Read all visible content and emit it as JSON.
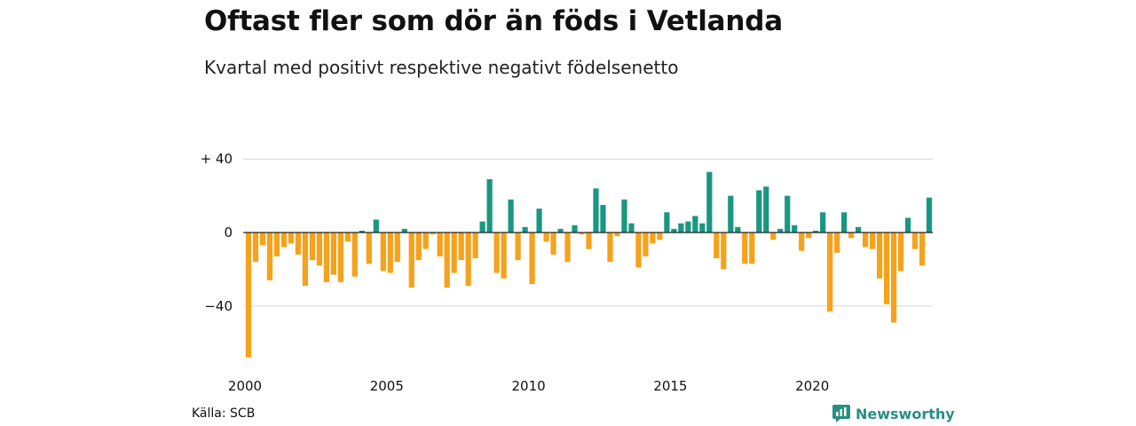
{
  "title": "Oftast fler som dör än föds i Vetlanda",
  "subtitle": "Kvartal med positivt respektive negativt födelsenetto",
  "source": "Källa: SCB",
  "brand": "Newsworthy",
  "colors": {
    "positive": "#1a9782",
    "negative": "#f5a21c",
    "grid": "#d6d6d6",
    "zero": "#222222",
    "brand": "#2a8f82"
  },
  "chart_data": {
    "type": "bar",
    "y_ticks": [
      {
        "value": 40,
        "label": "+ 40"
      },
      {
        "value": 0,
        "label": "0"
      },
      {
        "value": -40,
        "label": "−40"
      }
    ],
    "x_ticks": [
      {
        "index": 0,
        "label": "2000"
      },
      {
        "index": 20,
        "label": "2005"
      },
      {
        "index": 40,
        "label": "2010"
      },
      {
        "index": 60,
        "label": "2015"
      },
      {
        "index": 80,
        "label": "2020"
      }
    ],
    "ylim": [
      -70,
      45
    ],
    "start_period": "2000 Q1",
    "values": [
      -68,
      -16,
      -7,
      -26,
      -13,
      -8,
      -6,
      -12,
      -29,
      -15,
      -18,
      -27,
      -23,
      -27,
      -5,
      -24,
      1,
      -17,
      7,
      -21,
      -22,
      -16,
      2,
      -30,
      -15,
      -9,
      -1,
      -13,
      -30,
      -22,
      -15,
      -29,
      -14,
      6,
      29,
      -22,
      -25,
      18,
      -15,
      3,
      -28,
      13,
      -5,
      -12,
      2,
      -16,
      4,
      -1,
      -9,
      24,
      15,
      -16,
      -2,
      18,
      5,
      -19,
      -13,
      -6,
      -4,
      11,
      2,
      5,
      6,
      9,
      5,
      33,
      -14,
      -20,
      20,
      3,
      -17,
      -17,
      23,
      25,
      -4,
      2,
      20,
      4,
      -10,
      -3,
      1,
      11,
      -43,
      -11,
      11,
      -3,
      3,
      -8,
      -9,
      -25,
      -39,
      -49,
      -21,
      8,
      -9,
      -18,
      19
    ]
  }
}
